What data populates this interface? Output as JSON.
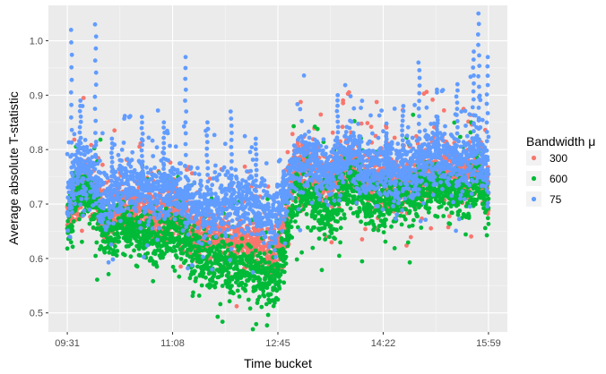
{
  "chart_data": {
    "type": "scatter",
    "xlabel": "Time bucket",
    "ylabel": "Average absolute T-statistic",
    "x_tick_labels": [
      "09:31",
      "11:08",
      "12:45",
      "14:22",
      "15:59"
    ],
    "x_tick_minutes": [
      571,
      668,
      765,
      862,
      959
    ],
    "xlim_minutes": [
      553.6,
      976.4
    ],
    "y_ticks": [
      0.5,
      0.6,
      0.7,
      0.8,
      0.9,
      1.0
    ],
    "y_tick_labels": [
      "0.5",
      "0.6",
      "0.7",
      "0.8",
      "0.9",
      "1.0"
    ],
    "ylim": [
      0.465,
      1.065
    ],
    "grid": true,
    "legend": {
      "title": "Bandwidth μ",
      "placement": "right"
    },
    "series": [
      {
        "name": "300",
        "color": "#F8766D",
        "knots": [
          [
            571,
            0.67
          ],
          [
            580,
            0.72
          ],
          [
            590,
            0.74
          ],
          [
            600,
            0.7
          ],
          [
            610,
            0.67
          ],
          [
            620,
            0.7
          ],
          [
            635,
            0.69
          ],
          [
            650,
            0.68
          ],
          [
            665,
            0.69
          ],
          [
            680,
            0.67
          ],
          [
            695,
            0.64
          ],
          [
            710,
            0.64
          ],
          [
            725,
            0.63
          ],
          [
            740,
            0.63
          ],
          [
            750,
            0.63
          ],
          [
            760,
            0.61
          ],
          [
            765,
            0.62
          ],
          [
            772,
            0.66
          ],
          [
            780,
            0.76
          ],
          [
            790,
            0.78
          ],
          [
            800,
            0.76
          ],
          [
            815,
            0.74
          ],
          [
            830,
            0.78
          ],
          [
            845,
            0.75
          ],
          [
            860,
            0.74
          ],
          [
            875,
            0.74
          ],
          [
            890,
            0.75
          ],
          [
            905,
            0.77
          ],
          [
            920,
            0.76
          ],
          [
            935,
            0.75
          ],
          [
            950,
            0.77
          ],
          [
            959,
            0.73
          ]
        ],
        "spread": 0.05
      },
      {
        "name": "600",
        "color": "#00BA38",
        "knots": [
          [
            571,
            0.66
          ],
          [
            580,
            0.72
          ],
          [
            590,
            0.72
          ],
          [
            600,
            0.68
          ],
          [
            610,
            0.64
          ],
          [
            620,
            0.67
          ],
          [
            635,
            0.65
          ],
          [
            650,
            0.64
          ],
          [
            665,
            0.65
          ],
          [
            680,
            0.63
          ],
          [
            695,
            0.6
          ],
          [
            710,
            0.6
          ],
          [
            725,
            0.58
          ],
          [
            740,
            0.58
          ],
          [
            750,
            0.57
          ],
          [
            760,
            0.56
          ],
          [
            765,
            0.57
          ],
          [
            772,
            0.62
          ],
          [
            780,
            0.72
          ],
          [
            790,
            0.72
          ],
          [
            800,
            0.7
          ],
          [
            815,
            0.68
          ],
          [
            830,
            0.74
          ],
          [
            845,
            0.71
          ],
          [
            860,
            0.7
          ],
          [
            875,
            0.71
          ],
          [
            890,
            0.72
          ],
          [
            905,
            0.74
          ],
          [
            920,
            0.73
          ],
          [
            935,
            0.72
          ],
          [
            950,
            0.75
          ],
          [
            959,
            0.7
          ]
        ],
        "spread": 0.05
      },
      {
        "name": "75",
        "color": "#619CFF",
        "knots": [
          [
            571,
            0.69
          ],
          [
            580,
            0.76
          ],
          [
            590,
            0.77
          ],
          [
            600,
            0.73
          ],
          [
            610,
            0.7
          ],
          [
            620,
            0.74
          ],
          [
            635,
            0.73
          ],
          [
            650,
            0.72
          ],
          [
            665,
            0.73
          ],
          [
            680,
            0.71
          ],
          [
            695,
            0.69
          ],
          [
            710,
            0.7
          ],
          [
            725,
            0.7
          ],
          [
            740,
            0.7
          ],
          [
            750,
            0.69
          ],
          [
            760,
            0.67
          ],
          [
            765,
            0.68
          ],
          [
            772,
            0.72
          ],
          [
            780,
            0.77
          ],
          [
            790,
            0.79
          ],
          [
            800,
            0.77
          ],
          [
            815,
            0.76
          ],
          [
            830,
            0.8
          ],
          [
            845,
            0.77
          ],
          [
            860,
            0.76
          ],
          [
            875,
            0.76
          ],
          [
            890,
            0.77
          ],
          [
            905,
            0.79
          ],
          [
            920,
            0.78
          ],
          [
            935,
            0.77
          ],
          [
            950,
            0.8
          ],
          [
            959,
            0.74
          ]
        ],
        "spread": 0.055,
        "spikes": [
          [
            575,
            1.02
          ],
          [
            583,
            0.89
          ],
          [
            597,
            1.03
          ],
          [
            612,
            0.82
          ],
          [
            640,
            0.86
          ],
          [
            660,
            0.85
          ],
          [
            680,
            0.97
          ],
          [
            700,
            0.85
          ],
          [
            722,
            0.87
          ],
          [
            745,
            0.82
          ],
          [
            770,
            0.76
          ],
          [
            800,
            0.81
          ],
          [
            820,
            0.9
          ],
          [
            840,
            0.82
          ],
          [
            865,
            0.83
          ],
          [
            880,
            0.88
          ],
          [
            895,
            0.96
          ],
          [
            912,
            0.86
          ],
          [
            930,
            0.92
          ],
          [
            945,
            0.98
          ],
          [
            950,
            1.05
          ],
          [
            958,
            0.97
          ]
        ]
      }
    ]
  }
}
